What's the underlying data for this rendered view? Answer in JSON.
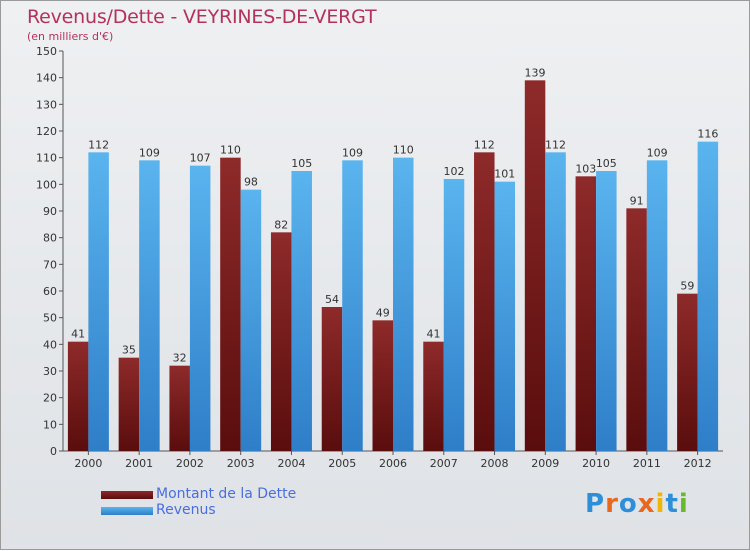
{
  "header": {
    "title": "Revenus/Dette - VEYRINES-DE-VERGT",
    "subtitle": "(en milliers d'€)"
  },
  "colors": {
    "title": "#b4325a",
    "dette_top": "#8e2a2a",
    "dette_bottom": "#5a0d0d",
    "revenus_top": "#5ab4ee",
    "revenus_bottom": "#2e7ec8",
    "legend_text": "#4a6ee0"
  },
  "chart_data": {
    "type": "bar",
    "categories": [
      "2000",
      "2001",
      "2002",
      "2003",
      "2004",
      "2005",
      "2006",
      "2007",
      "2008",
      "2009",
      "2010",
      "2011",
      "2012"
    ],
    "series": [
      {
        "name": "Montant de la Dette",
        "values": [
          41,
          35,
          32,
          110,
          82,
          54,
          49,
          41,
          112,
          139,
          103,
          91,
          59
        ]
      },
      {
        "name": "Revenus",
        "values": [
          112,
          109,
          107,
          98,
          105,
          109,
          110,
          102,
          101,
          112,
          105,
          109,
          116
        ]
      }
    ],
    "ylim": [
      0,
      150
    ],
    "yticks": [
      0,
      10,
      20,
      30,
      40,
      50,
      60,
      70,
      80,
      90,
      100,
      110,
      120,
      130,
      140,
      150
    ],
    "grid": false,
    "legend_position": "bottom-left",
    "data_labels": true
  },
  "legend": {
    "items": [
      {
        "label": "Montant de la Dette",
        "icon": "legend-swatch-dette"
      },
      {
        "label": "Revenus",
        "icon": "legend-swatch-revenus"
      }
    ]
  },
  "logo": {
    "text": "Proxiti",
    "letter_colors": [
      "#2e8fd8",
      "#e8691e",
      "#2e8fd8",
      "#e8691e",
      "#f2b500",
      "#2e8fd8",
      "#6ab82e"
    ]
  }
}
